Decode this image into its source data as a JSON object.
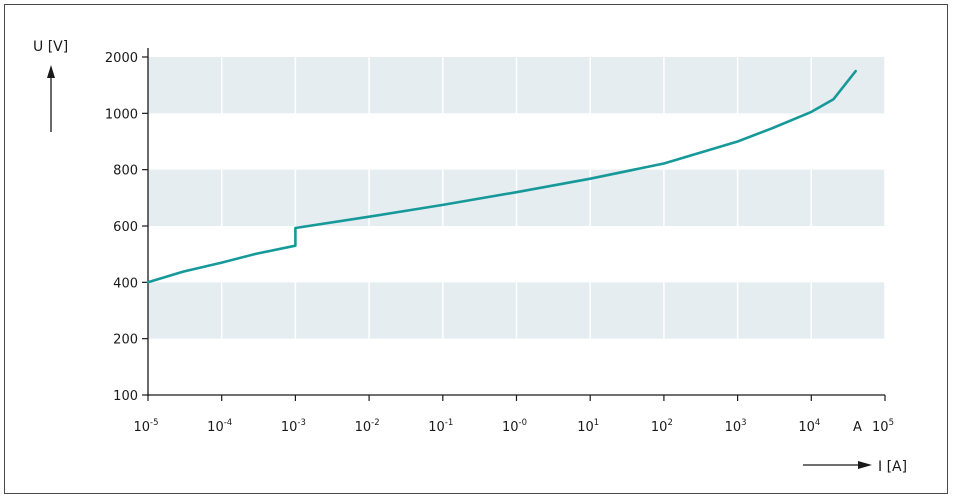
{
  "chart_data": {
    "type": "line",
    "ylabel": "U [V]",
    "xlabel": "I [A]",
    "x_unit_marker": "A",
    "x_scale": "log",
    "y_scale": "segmented",
    "x_ticks": [
      {
        "base": "10",
        "exp": "-5",
        "value": 1e-05
      },
      {
        "base": "10",
        "exp": "-4",
        "value": 0.0001
      },
      {
        "base": "10",
        "exp": "-3",
        "value": 0.001
      },
      {
        "base": "10",
        "exp": "-2",
        "value": 0.01
      },
      {
        "base": "10",
        "exp": "-1",
        "value": 0.1
      },
      {
        "base": "10",
        "exp": "-0",
        "value": 1
      },
      {
        "base": "10",
        "exp": "1",
        "value": 10
      },
      {
        "base": "10",
        "exp": "2",
        "value": 100
      },
      {
        "base": "10",
        "exp": "3",
        "value": 1000
      },
      {
        "base": "10",
        "exp": "4",
        "value": 10000
      },
      {
        "base": "10",
        "exp": "5",
        "value": 100000
      }
    ],
    "y_ticks": [
      "100",
      "200",
      "400",
      "600",
      "800",
      "1000",
      "2000"
    ],
    "y_tick_values": [
      100,
      200,
      400,
      600,
      800,
      1000,
      2000
    ],
    "xlim": [
      1e-05,
      100000.0
    ],
    "ylim": [
      100,
      2000
    ],
    "grid": true,
    "colors": {
      "line": "#17999a",
      "band": "#e6edf0",
      "axis": "#1a1a1a"
    },
    "series": [
      {
        "points": [
          [
            1e-05,
            400
          ],
          [
            3e-05,
            438
          ],
          [
            0.0001,
            470
          ],
          [
            0.0003,
            502
          ],
          [
            0.001,
            530
          ],
          [
            0.001,
            593
          ],
          [
            0.01,
            633
          ],
          [
            0.1,
            675
          ],
          [
            1,
            720
          ],
          [
            10,
            768
          ],
          [
            100,
            822
          ],
          [
            1000,
            900
          ],
          [
            3000,
            948
          ],
          [
            10000,
            1025
          ],
          [
            20000,
            1250
          ],
          [
            40000,
            1750
          ]
        ]
      }
    ]
  }
}
